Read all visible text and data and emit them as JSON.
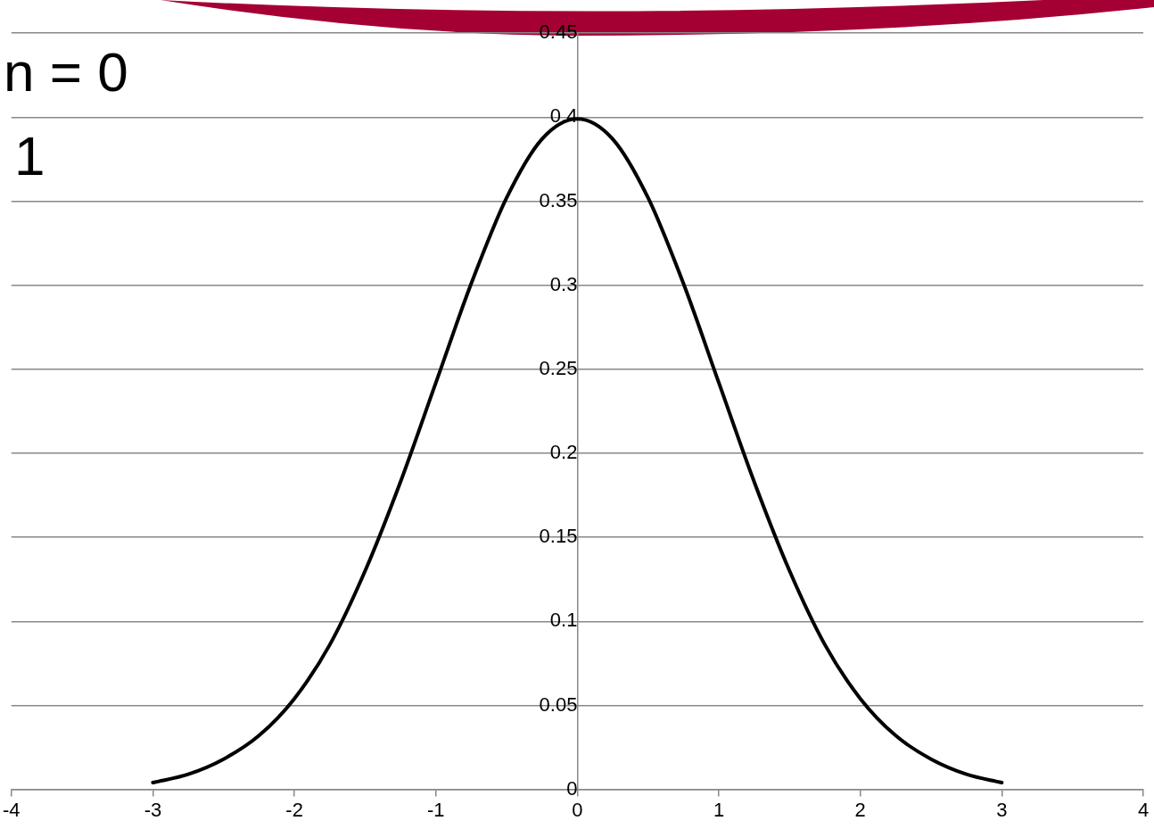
{
  "chart_data": {
    "type": "line",
    "x": [
      -3,
      -2.75,
      -2.5,
      -2.25,
      -2,
      -1.75,
      -1.5,
      -1.25,
      -1,
      -0.75,
      -0.5,
      -0.25,
      0,
      0.25,
      0.5,
      0.75,
      1,
      1.25,
      1.5,
      1.75,
      2,
      2.25,
      2.5,
      2.75,
      3
    ],
    "values": [
      0.004,
      0.009,
      0.018,
      0.032,
      0.054,
      0.086,
      0.13,
      0.183,
      0.242,
      0.301,
      0.352,
      0.387,
      0.399,
      0.387,
      0.352,
      0.301,
      0.242,
      0.183,
      0.13,
      0.086,
      0.054,
      0.032,
      0.018,
      0.009,
      0.004
    ],
    "color": "#000000",
    "xlim": [
      -4,
      4
    ],
    "xticks": [
      -4,
      -3,
      -2,
      -1,
      0,
      1,
      2,
      3,
      4
    ],
    "ylim": [
      0,
      0.45
    ],
    "yticks": [
      0,
      0.05,
      0.1,
      0.15,
      0.2,
      0.25,
      0.3,
      0.35,
      0.4,
      0.45
    ],
    "grid": "y",
    "marker": "none",
    "line_style": "solid",
    "annotations": [
      "n = 0",
      "1"
    ]
  }
}
